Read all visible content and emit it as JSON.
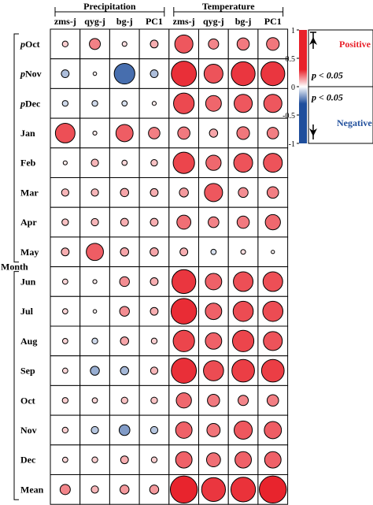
{
  "chart_data": {
    "type": "heatmap",
    "column_groups": [
      {
        "label": "Precipitation",
        "columns": [
          "zms-j",
          "qyg-j",
          "bg-j",
          "PC1"
        ]
      },
      {
        "label": "Temperature",
        "columns": [
          "zms-j",
          "qyg-j",
          "bg-j",
          "PC1"
        ]
      }
    ],
    "rows": [
      {
        "prefix": "p",
        "label": "Oct"
      },
      {
        "prefix": "p",
        "label": "Nov"
      },
      {
        "prefix": "p",
        "label": "Dec"
      },
      {
        "prefix": "",
        "label": "Jan"
      },
      {
        "prefix": "",
        "label": "Feb"
      },
      {
        "prefix": "",
        "label": "Mar"
      },
      {
        "prefix": "",
        "label": "Apr"
      },
      {
        "prefix": "",
        "label": "May"
      },
      {
        "prefix": "",
        "label": "Jun"
      },
      {
        "prefix": "",
        "label": "Jul"
      },
      {
        "prefix": "",
        "label": "Aug"
      },
      {
        "prefix": "",
        "label": "Sep"
      },
      {
        "prefix": "",
        "label": "Oct"
      },
      {
        "prefix": "",
        "label": "Nov"
      },
      {
        "prefix": "",
        "label": "Dec"
      },
      {
        "prefix": "",
        "label": "Mean"
      }
    ],
    "row_axis_label": "Month",
    "values": [
      [
        0.12,
        0.33,
        0.08,
        0.2,
        0.62,
        0.3,
        0.38,
        0.4
      ],
      [
        -0.2,
        0.03,
        -0.72,
        -0.2,
        0.9,
        0.65,
        0.85,
        0.85
      ],
      [
        -0.12,
        -0.12,
        -0.1,
        0.05,
        0.72,
        0.52,
        0.62,
        0.62
      ],
      [
        0.68,
        0.05,
        0.58,
        0.35,
        0.38,
        0.22,
        0.4,
        0.35
      ],
      [
        0.05,
        0.18,
        0.1,
        0.15,
        0.75,
        0.5,
        0.65,
        0.65
      ],
      [
        0.18,
        0.18,
        0.22,
        0.2,
        0.25,
        0.62,
        0.28,
        0.35
      ],
      [
        0.15,
        0.18,
        0.2,
        0.2,
        0.45,
        0.32,
        0.38,
        0.5
      ],
      [
        0.2,
        0.58,
        0.22,
        0.22,
        0.2,
        -0.1,
        0.08,
        0.02
      ],
      [
        0.1,
        0.05,
        0.28,
        0.2,
        0.85,
        0.55,
        0.68,
        0.68
      ],
      [
        0.1,
        0.03,
        0.28,
        0.2,
        0.92,
        0.55,
        0.7,
        0.7
      ],
      [
        0.1,
        -0.12,
        0.22,
        0.12,
        0.75,
        0.55,
        0.75,
        0.65
      ],
      [
        0.1,
        -0.25,
        -0.22,
        0.18,
        0.9,
        0.7,
        0.8,
        0.8
      ],
      [
        0.12,
        0.1,
        0.15,
        0.15,
        0.5,
        0.38,
        0.3,
        0.35
      ],
      [
        0.12,
        -0.18,
        -0.32,
        -0.18,
        0.55,
        0.42,
        0.62,
        0.58
      ],
      [
        0.1,
        0.12,
        0.2,
        0.12,
        0.55,
        0.45,
        0.55,
        0.55
      ],
      [
        0.3,
        0.18,
        0.25,
        0.25,
        0.98,
        0.85,
        0.88,
        0.98
      ]
    ],
    "value_range": [
      -1,
      1
    ],
    "colorbar": {
      "ticks": [
        1,
        0.5,
        0,
        -0.5,
        -1
      ],
      "tick_labels": [
        "1",
        "0.5",
        "0",
        "-0.5",
        "-1"
      ],
      "positive_label": "Positive",
      "negative_label": "Negative",
      "significance_label": "p < 0.05",
      "positive_color": "#e8212a",
      "negative_color": "#1f4e9c",
      "white_color": "#ffffff"
    }
  }
}
